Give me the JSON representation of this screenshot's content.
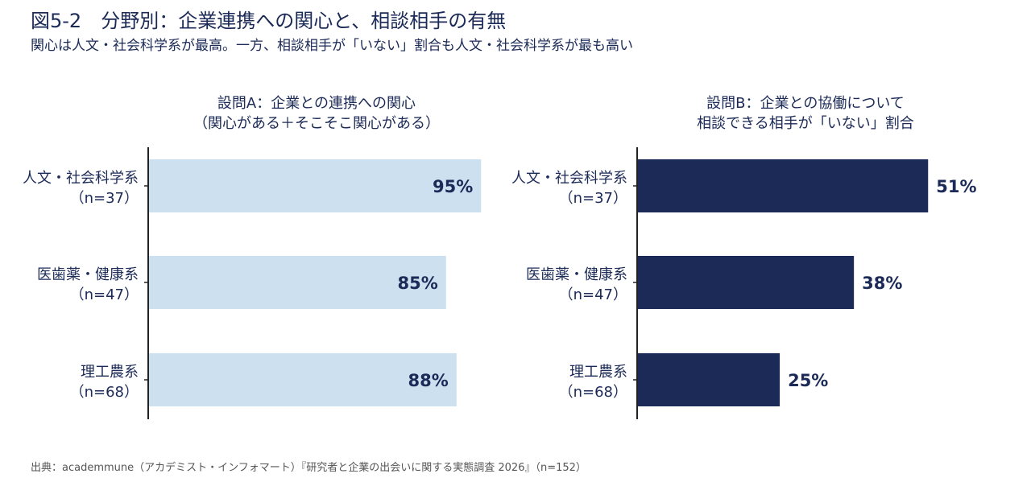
{
  "title": "図5-2　分野別：企業連携への関心と、相談相手の有無",
  "subtitle": "関心は人文・社会科学系が最高。一方、相談相手が「いない」割合も人文・社会科学系が最も高い",
  "source": "出典：academmune（アカデミスト・インフォマート）『研究者と企業の出会いに関する実態調査 2026』（n=152）",
  "colors": {
    "panel_a_bar": "#cce0f0",
    "panel_b_bar": "#1b2a57",
    "text": "#1b2a57"
  },
  "chart_data": [
    {
      "type": "bar",
      "orientation": "horizontal",
      "title_lines": [
        "設問A：企業との連携への関心",
        "（関心がある＋そこそこ関心がある）"
      ],
      "categories": [
        [
          "人文・社会科学系",
          "（n=37）"
        ],
        [
          "医歯薬・健康系",
          "（n=47）"
        ],
        [
          "理工農系",
          "（n=68）"
        ]
      ],
      "values": [
        95,
        85,
        88
      ],
      "value_labels": [
        "95%",
        "85%",
        "88%"
      ],
      "unit": "%",
      "xlim": [
        0,
        100
      ],
      "label_position": "inside-end",
      "grid": false
    },
    {
      "type": "bar",
      "orientation": "horizontal",
      "title_lines": [
        "設問B：企業との協働について",
        "相談できる相手が「いない」割合"
      ],
      "categories": [
        [
          "人文・社会科学系",
          "（n=37）"
        ],
        [
          "医歯薬・健康系",
          "（n=47）"
        ],
        [
          "理工農系",
          "（n=68）"
        ]
      ],
      "values": [
        51,
        38,
        25
      ],
      "value_labels": [
        "51%",
        "38%",
        "25%"
      ],
      "unit": "%",
      "xlim": [
        0,
        60
      ],
      "label_position": "outside-end",
      "grid": false
    }
  ]
}
